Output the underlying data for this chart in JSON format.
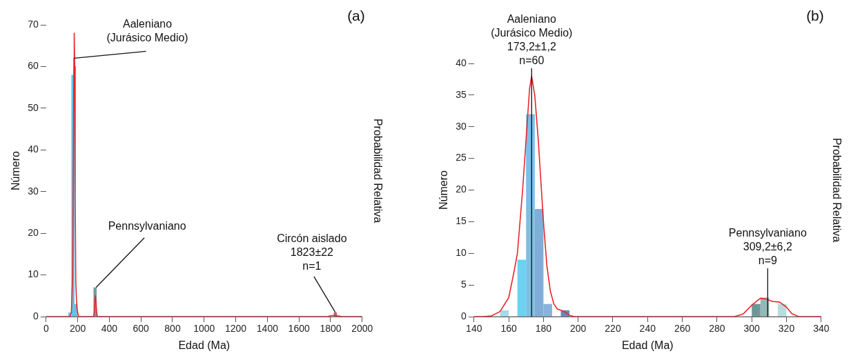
{
  "chart_data": [
    {
      "type": "histogram",
      "title": "(a)",
      "xlabel": "Edad (Ma)",
      "ylabel": "Número",
      "y2label": "Probabilidad Relativa",
      "xlim": [
        0,
        2000
      ],
      "xticks": [
        0,
        200,
        400,
        600,
        800,
        1000,
        1200,
        1400,
        1600,
        1800,
        2000
      ],
      "ylim": [
        0,
        70
      ],
      "yticks": [
        0,
        10,
        20,
        30,
        40,
        50,
        60,
        70
      ],
      "series": [
        {
          "type": "histogram",
          "bins": [
            140,
            160,
            180,
            200,
            300,
            320,
            1820,
            1840
          ],
          "values": [
            1,
            58,
            3,
            0,
            7,
            0,
            1
          ],
          "colors": [
            "#7cc3e6",
            "#5bc8ec",
            "#6fbfe0",
            "#ffffff",
            "#6f9e9e",
            "#ffffff",
            "#e0508a"
          ]
        },
        {
          "type": "line",
          "color": "#e8262b",
          "x": [
            0,
            150,
            160,
            168,
            173,
            176,
            178,
            181,
            184,
            188,
            195,
            205,
            300,
            305,
            309,
            312,
            316,
            320,
            325,
            1780,
            1800,
            1823,
            1845,
            1870,
            2000
          ],
          "values": [
            0,
            0,
            1,
            10,
            40,
            62,
            68,
            60,
            30,
            8,
            2,
            0,
            0,
            1,
            4,
            5,
            3.5,
            1,
            0,
            0,
            0.2,
            0.3,
            0.2,
            0,
            0
          ]
        }
      ],
      "annotations": [
        {
          "text": "Aaleniano\n(Jurásico Medio)",
          "x": 178,
          "y": 62
        },
        {
          "text": "Pennsylvaniano",
          "x": 316,
          "y": 7
        },
        {
          "text": "Circón aislado\n1823±22\nn=1",
          "x": 1830,
          "y": 1
        }
      ]
    },
    {
      "type": "histogram",
      "title": "(b)",
      "xlabel": "Edad (Ma)",
      "ylabel": "Número",
      "y2label": "Probabilidad Relativa",
      "xlim": [
        140,
        340
      ],
      "xticks": [
        140,
        160,
        180,
        200,
        220,
        240,
        260,
        280,
        300,
        320,
        340
      ],
      "ylim": [
        0,
        40
      ],
      "yticks": [
        0,
        5,
        10,
        15,
        20,
        25,
        30,
        35,
        40
      ],
      "series": [
        {
          "type": "histogram",
          "bins": [
            155,
            160,
            165,
            170,
            175,
            180,
            185,
            190,
            195,
            300,
            305,
            310,
            315,
            320
          ],
          "values": [
            1,
            0,
            9,
            32,
            17,
            2,
            0,
            1,
            0,
            2,
            3,
            0,
            2
          ],
          "colors": [
            "#a6d9ec",
            "#ffffff",
            "#6dd2f2",
            "#7cbfe6",
            "#80aed8",
            "#88b3dd",
            "#ffffff",
            "#6888c0",
            "#ffffff",
            "#6f9696",
            "#93b8b8",
            "#ffffff",
            "#b7dede"
          ]
        },
        {
          "type": "line",
          "color": "#e8262b",
          "x": [
            140,
            145,
            150,
            155,
            160,
            163,
            165,
            168,
            170,
            172,
            173.2,
            175,
            177,
            180,
            182,
            184,
            186,
            188,
            190,
            192,
            195,
            198,
            290,
            295,
            300,
            305,
            308,
            312,
            316,
            320,
            323,
            327,
            340
          ],
          "values": [
            0,
            0,
            0.1,
            0.8,
            3,
            7,
            10,
            20,
            28,
            36,
            38,
            35,
            28,
            15,
            8,
            4,
            2,
            1.2,
            1,
            0.8,
            0.2,
            0,
            0,
            0.4,
            1.8,
            2.9,
            2.8,
            2.4,
            2.3,
            1.5,
            0.5,
            0,
            0
          ]
        }
      ],
      "ref_lines": [
        {
          "axis": "x",
          "value": 173.2,
          "label": "Aaleniano\n(Jurásico Medio)\n173,2±1,2\nn=60",
          "color": "#111111"
        },
        {
          "axis": "x",
          "value": 309.2,
          "label": "Pennsylvaniano\n309,2±6,2\nn=9",
          "color": "#111111"
        }
      ]
    }
  ]
}
